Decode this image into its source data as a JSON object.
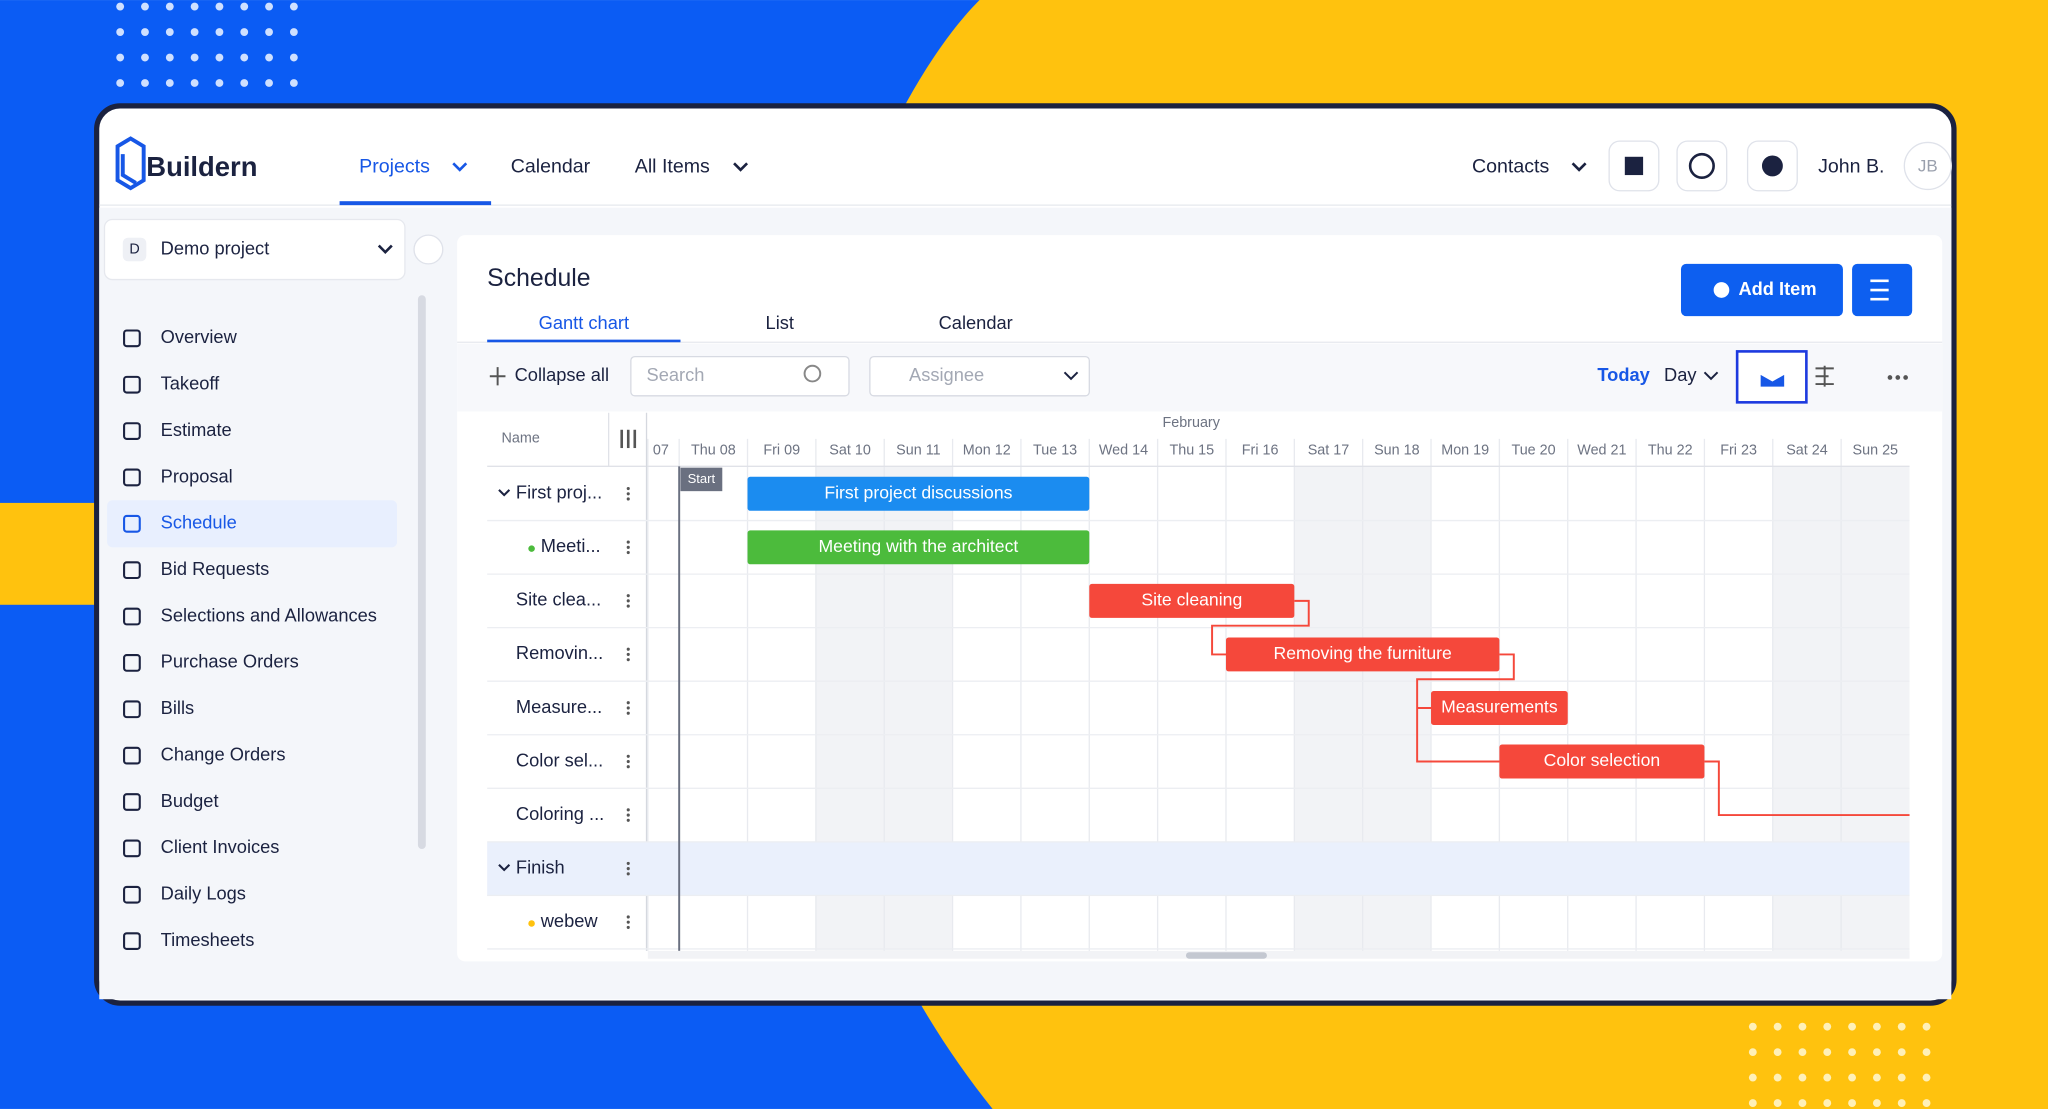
{
  "brand": "Buildern",
  "nav": [
    "Projects",
    "Calendar",
    "All Items"
  ],
  "header_right": {
    "contacts": "Contacts",
    "user": "John B.",
    "initials": "JB"
  },
  "project": {
    "initial": "D",
    "name": "Demo project"
  },
  "sidebar": [
    "Overview",
    "Takeoff",
    "Estimate",
    "Proposal",
    "Schedule",
    "Bid Requests",
    "Selections and Allowances",
    "Purchase Orders",
    "Bills",
    "Change Orders",
    "Budget",
    "Client Invoices",
    "Daily Logs",
    "Timesheets"
  ],
  "schedule": {
    "title": "Schedule",
    "tabs": [
      "Gantt chart",
      "List",
      "Calendar"
    ],
    "add_item": "Add Item",
    "toolbar": {
      "collapse": "Collapse all",
      "search": "Search",
      "assignee": "Assignee",
      "today": "Today",
      "scale": "Day"
    }
  },
  "gantt": {
    "name_header": "Name",
    "month": "February",
    "days": [
      "07",
      "Thu 08",
      "Fri 09",
      "Sat 10",
      "Sun 11",
      "Mon 12",
      "Tue 13",
      "Wed 14",
      "Thu 15",
      "Fri 16",
      "Sat 17",
      "Sun 18",
      "Mon 19",
      "Tue 20",
      "Wed 21",
      "Thu 22",
      "Fri 23",
      "Sat 24",
      "Sun 25"
    ],
    "rows": [
      "First proj...",
      "Meeti...",
      "Site clea...",
      "Removin...",
      "Measure...",
      "Color sel...",
      "Coloring ...",
      "Finish",
      "webew"
    ],
    "bars": [
      "Start",
      "First project discussions",
      "Meeting with the architect",
      "Site cleaning",
      "Removing the furniture",
      "Measurements",
      "Color selection"
    ]
  }
}
